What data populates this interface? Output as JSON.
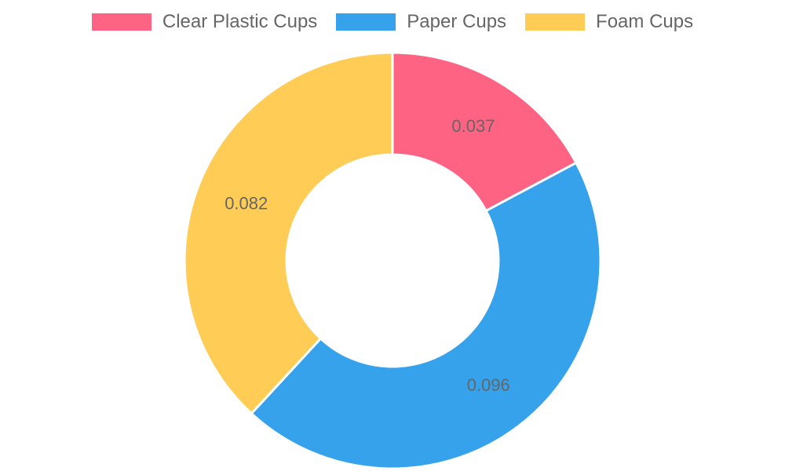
{
  "chart_data": {
    "type": "pie",
    "variant": "doughnut",
    "legend_position": "top",
    "categories": [
      "Clear Plastic Cups",
      "Paper Cups",
      "Foam Cups"
    ],
    "values": [
      0.037,
      0.096,
      0.082
    ],
    "value_labels": [
      "0.037",
      "0.096",
      "0.082"
    ],
    "colors": [
      "#ff6384",
      "#36a2eb",
      "#ffcd56"
    ]
  }
}
